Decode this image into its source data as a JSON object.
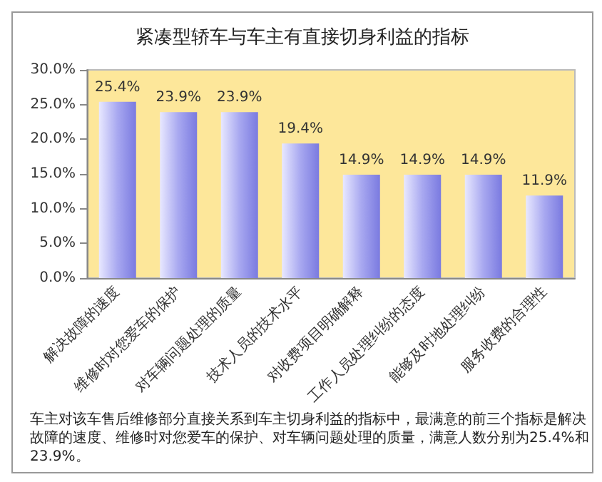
{
  "chart_data": {
    "type": "bar",
    "title": "紧凑型轿车与车主有直接切身利益的指标",
    "categories": [
      "解决故障的速度",
      "维修时对您爱车的保护",
      "对车辆问题处理的质量",
      "技术人员的技术水平",
      "对收费项目明确解释",
      "工作人员处理纠纷的态度",
      "能够及时地处理纠纷",
      "服务收费的合理性"
    ],
    "values": [
      25.4,
      23.9,
      23.9,
      19.4,
      14.9,
      14.9,
      14.9,
      11.9
    ],
    "value_labels": [
      "25.4%",
      "23.9%",
      "23.9%",
      "19.4%",
      "14.9%",
      "14.9%",
      "14.9%",
      "11.9%"
    ],
    "color": "#a8a8f0",
    "ylim": [
      0,
      30
    ],
    "yticks": [
      {
        "value": 0,
        "label": "0.0%"
      },
      {
        "value": 5,
        "label": "5.0%"
      },
      {
        "value": 10,
        "label": "10.0%"
      },
      {
        "value": 15,
        "label": "15.0%"
      },
      {
        "value": 20,
        "label": "20.0%"
      },
      {
        "value": 25,
        "label": "25.0%"
      },
      {
        "value": 30,
        "label": "30.0%"
      }
    ],
    "grid": false,
    "annotations": [
      "车主对该车售后维修部分直接关系到车主切身利益的指标中，最满意的前三个指标是解决故障的速度、维修时对您爱车的保护、对车辆问题处理的质量，满意人数分别为25.4%和23.9%。"
    ]
  }
}
